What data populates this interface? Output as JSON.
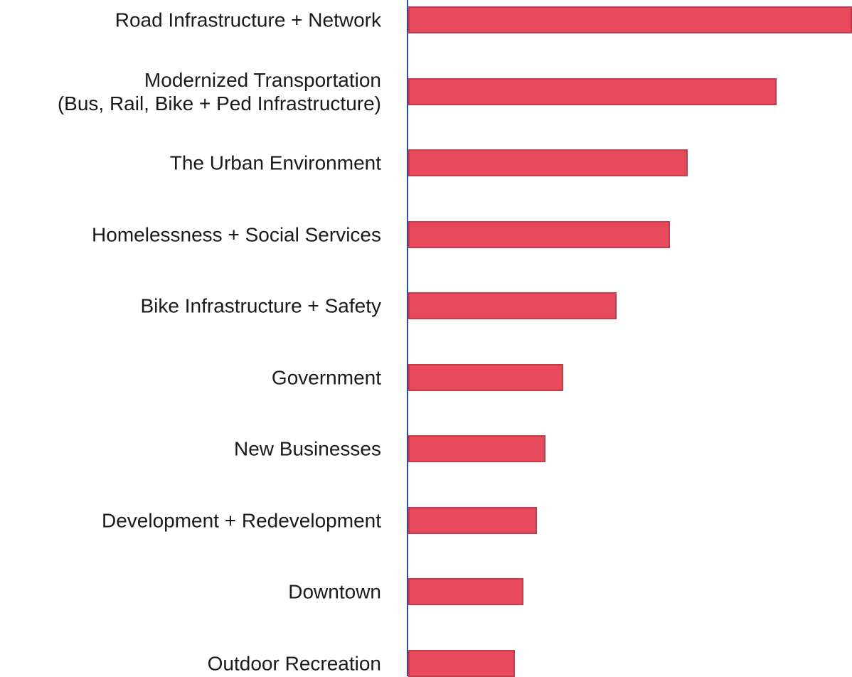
{
  "chart_data": {
    "type": "bar",
    "orientation": "horizontal",
    "categories": [
      "Road Infrastructure + Network",
      "Modernized Transportation\n(Bus, Rail, Bike + Ped Infrastructure)",
      "The Urban Environment",
      "Homelessness + Social Services",
      "Bike Infrastructure + Safety",
      "Government",
      "New Businesses",
      "Development + Redevelopment",
      "Downtown",
      "Outdoor Recreation"
    ],
    "values": [
      100,
      83,
      63,
      59,
      47,
      35,
      31,
      29,
      26,
      24
    ],
    "color": "#e84a5c",
    "xlim": [
      0,
      100
    ]
  }
}
